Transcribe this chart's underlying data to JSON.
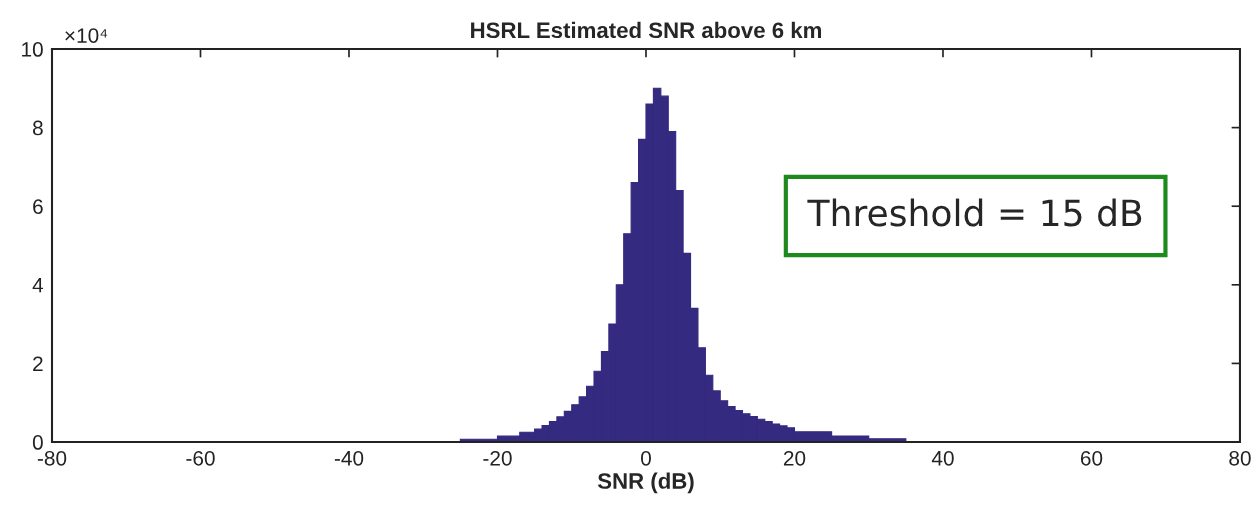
{
  "chart_data": {
    "type": "histogram",
    "title": "HSRL Estimated SNR above 6 km",
    "xlabel": "SNR (dB)",
    "bins": [
      -25,
      -20,
      -17,
      -15,
      -14,
      -13,
      -12,
      -11,
      -10,
      -9,
      -8,
      -7,
      -6,
      -5,
      -4,
      -3,
      -2,
      -1,
      0,
      1,
      2,
      3,
      4,
      5,
      6,
      7,
      8,
      9,
      10,
      11,
      12,
      13,
      14,
      15,
      16,
      17,
      18,
      19,
      20,
      25,
      30,
      35
    ],
    "values": [
      0.07,
      0.15,
      0.25,
      0.33,
      0.42,
      0.52,
      0.64,
      0.78,
      0.95,
      1.15,
      1.42,
      1.8,
      2.3,
      3.0,
      4.0,
      5.3,
      6.6,
      7.7,
      8.6,
      9.0,
      8.8,
      7.9,
      6.4,
      4.8,
      3.4,
      2.4,
      1.7,
      1.3,
      1.05,
      0.9,
      0.8,
      0.72,
      0.65,
      0.58,
      0.52,
      0.46,
      0.41,
      0.36,
      0.26,
      0.15,
      0.08
    ],
    "color": "#342a80",
    "xlim": [
      -80,
      80
    ],
    "xticks": [
      -80,
      -60,
      -40,
      -20,
      0,
      20,
      40,
      60,
      80
    ],
    "ylim": [
      0,
      10
    ],
    "yticks": [
      0,
      2,
      4,
      6,
      8,
      10
    ],
    "grid": false,
    "legend": false,
    "annotations": [
      "×10⁴",
      "Threshold = 15 dB"
    ]
  }
}
